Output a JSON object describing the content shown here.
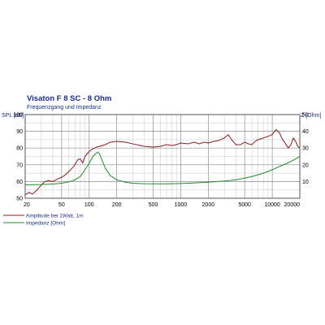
{
  "chart_data": {
    "type": "line",
    "title": "Visaton F 8 SC - 8 Ohm",
    "subtitle": "Frequenzgang und Impedanz",
    "xscale": "log",
    "xlim": [
      20,
      20000
    ],
    "x_ticks": [
      {
        "value": 20,
        "label": "20"
      },
      {
        "value": 50,
        "label": "50"
      },
      {
        "value": 100,
        "label": "100"
      },
      {
        "value": 200,
        "label": "200"
      },
      {
        "value": 500,
        "label": "500"
      },
      {
        "value": 1000,
        "label": "1000"
      },
      {
        "value": 2000,
        "label": "2000"
      },
      {
        "value": 5000,
        "label": "5000"
      },
      {
        "value": 10000,
        "label": "10000"
      },
      {
        "value": 20000,
        "label": "20000"
      }
    ],
    "left_axis": {
      "label": "SPL [dB]",
      "ylim": [
        50,
        100
      ],
      "ticks": [
        50,
        60,
        70,
        80,
        90,
        100
      ]
    },
    "right_axis": {
      "label": "Z [Ohm]",
      "ylim": [
        0,
        50
      ],
      "ticks": [
        10,
        20,
        30,
        40,
        50
      ]
    },
    "grid": true,
    "legend_position": "bottom-left",
    "series": [
      {
        "name": "Amplitude bei 1Watt, 1m",
        "axis": "left",
        "color": "#8b1a1a",
        "points": [
          [
            20,
            52
          ],
          [
            22,
            53.5
          ],
          [
            24,
            52.5
          ],
          [
            27,
            55
          ],
          [
            30,
            58
          ],
          [
            33,
            60
          ],
          [
            36,
            60.5
          ],
          [
            40,
            60
          ],
          [
            45,
            61.5
          ],
          [
            50,
            62.5
          ],
          [
            55,
            64
          ],
          [
            60,
            66
          ],
          [
            65,
            68
          ],
          [
            70,
            70
          ],
          [
            75,
            73
          ],
          [
            80,
            73.5
          ],
          [
            85,
            71
          ],
          [
            90,
            75
          ],
          [
            100,
            78
          ],
          [
            110,
            79.5
          ],
          [
            120,
            80.5
          ],
          [
            130,
            81
          ],
          [
            150,
            82
          ],
          [
            170,
            83.5
          ],
          [
            200,
            84
          ],
          [
            250,
            83.5
          ],
          [
            300,
            82.5
          ],
          [
            400,
            81
          ],
          [
            500,
            80.5
          ],
          [
            600,
            81
          ],
          [
            700,
            82
          ],
          [
            800,
            81.5
          ],
          [
            900,
            82
          ],
          [
            1000,
            83
          ],
          [
            1200,
            82.5
          ],
          [
            1400,
            83.5
          ],
          [
            1600,
            82.5
          ],
          [
            1800,
            83.5
          ],
          [
            2000,
            83
          ],
          [
            2300,
            84
          ],
          [
            2600,
            84.5
          ],
          [
            3000,
            86
          ],
          [
            3300,
            88
          ],
          [
            3600,
            85
          ],
          [
            4000,
            82
          ],
          [
            4500,
            82
          ],
          [
            5000,
            83.5
          ],
          [
            5500,
            82.5
          ],
          [
            6000,
            82
          ],
          [
            6500,
            84
          ],
          [
            7000,
            85
          ],
          [
            8000,
            86
          ],
          [
            9000,
            87
          ],
          [
            10000,
            88
          ],
          [
            11000,
            91
          ],
          [
            12000,
            89
          ],
          [
            13000,
            85
          ],
          [
            14000,
            82.5
          ],
          [
            15000,
            80
          ],
          [
            16000,
            82
          ],
          [
            17000,
            86
          ],
          [
            18000,
            84
          ],
          [
            19000,
            81
          ],
          [
            20000,
            80
          ]
        ]
      },
      {
        "name": "Impedanz [Ohm]",
        "axis": "right",
        "color": "#1e8c2e",
        "points": [
          [
            20,
            8
          ],
          [
            30,
            8.2
          ],
          [
            40,
            8.5
          ],
          [
            50,
            9
          ],
          [
            60,
            9.8
          ],
          [
            70,
            11
          ],
          [
            80,
            13
          ],
          [
            90,
            17
          ],
          [
            100,
            21
          ],
          [
            110,
            25
          ],
          [
            120,
            27
          ],
          [
            125,
            27.5
          ],
          [
            130,
            26.5
          ],
          [
            140,
            22
          ],
          [
            150,
            18
          ],
          [
            170,
            13.5
          ],
          [
            200,
            11
          ],
          [
            250,
            9.5
          ],
          [
            300,
            9
          ],
          [
            400,
            8.7
          ],
          [
            500,
            8.6
          ],
          [
            700,
            8.6
          ],
          [
            1000,
            8.8
          ],
          [
            1500,
            9.2
          ],
          [
            2000,
            9.6
          ],
          [
            3000,
            10.3
          ],
          [
            4000,
            11
          ],
          [
            5000,
            12
          ],
          [
            6000,
            13
          ],
          [
            8000,
            15
          ],
          [
            10000,
            17
          ],
          [
            12000,
            19
          ],
          [
            14000,
            20.5
          ],
          [
            16000,
            22
          ],
          [
            18000,
            23.5
          ],
          [
            20000,
            25
          ]
        ]
      }
    ]
  }
}
